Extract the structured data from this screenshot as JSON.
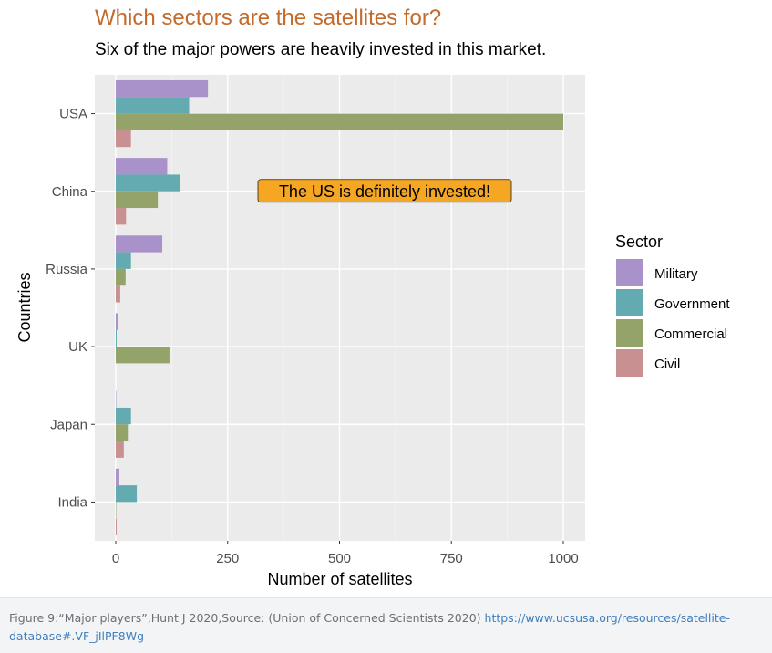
{
  "chart_data": {
    "type": "bar",
    "orientation": "horizontal",
    "title": "Which sectors are the satellites for?",
    "subtitle": "Six of the major powers are heavily invested in this market.",
    "xlabel": "Number of satellites",
    "ylabel": "Countries",
    "xlim": [
      0,
      1050
    ],
    "x_ticks": [
      0,
      250,
      500,
      750,
      1000
    ],
    "grid": true,
    "categories": [
      "USA",
      "China",
      "Russia",
      "UK",
      "Japan",
      "India"
    ],
    "series": [
      {
        "name": "Military",
        "color": "#a992c9",
        "values": [
          206,
          115,
          104,
          4,
          1,
          8
        ]
      },
      {
        "name": "Government",
        "color": "#63abb0",
        "values": [
          164,
          143,
          34,
          2,
          34,
          47
        ]
      },
      {
        "name": "Commercial",
        "color": "#93a36a",
        "values": [
          1000,
          94,
          22,
          120,
          27,
          1
        ]
      },
      {
        "name": "Civil",
        "color": "#c89090",
        "values": [
          34,
          23,
          10,
          0,
          18,
          2
        ]
      }
    ],
    "legend": {
      "title": "Sector",
      "position": "right"
    },
    "annotation": {
      "text": "The US is definitely invested!",
      "x": 545,
      "category": "China",
      "fill": "#f5a623"
    },
    "panel_background": "#ebebeb",
    "title_color": "#c46a2b"
  },
  "caption": {
    "text": "Figure 9:“Major players”,Hunt J 2020,Source: (Union of Concerned Scientists 2020) ",
    "link_text": "https://www.ucsusa.org/resources/satellite-database#.VF_jIlPF8Wg"
  }
}
